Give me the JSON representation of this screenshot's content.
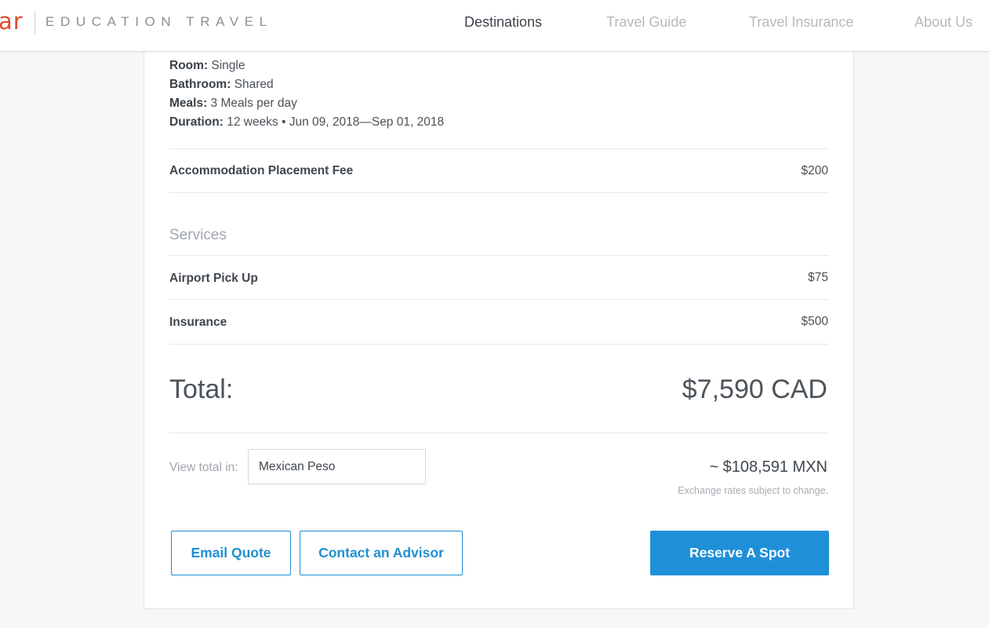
{
  "header": {
    "logo_mark": "ar",
    "logo_text": "EDUCATION TRAVEL",
    "nav": [
      {
        "label": "Destinations",
        "active": true
      },
      {
        "label": "Travel Guide",
        "active": false
      },
      {
        "label": "Travel Insurance",
        "active": false
      },
      {
        "label": "About Us",
        "active": false
      }
    ]
  },
  "accommodation": {
    "details": [
      {
        "key": "Room:",
        "value": " Single"
      },
      {
        "key": "Bathroom:",
        "value": " Shared"
      },
      {
        "key": "Meals:",
        "value": " 3 Meals per day"
      },
      {
        "key": "Duration:",
        "value": " 12 weeks • Jun 09, 2018—Sep 01, 2018"
      }
    ],
    "placement_fee_label": "Accommodation Placement Fee",
    "placement_fee_value": "$200"
  },
  "services": {
    "title": "Services",
    "items": [
      {
        "label": "Airport Pick Up",
        "value": "$75"
      },
      {
        "label": "Insurance",
        "value": "$500"
      }
    ]
  },
  "total": {
    "label": "Total:",
    "value": "$7,590 CAD"
  },
  "conversion": {
    "label": "View total in:",
    "selected_currency": "Mexican Peso",
    "converted_value": "~ $108,591 MXN",
    "note": "Exchange rates subject to change."
  },
  "actions": {
    "email_quote": "Email Quote",
    "contact_advisor": "Contact an Advisor",
    "reserve": "Reserve A Spot"
  },
  "colors": {
    "brand": "#e14a2b",
    "accent": "#1f90d8"
  }
}
